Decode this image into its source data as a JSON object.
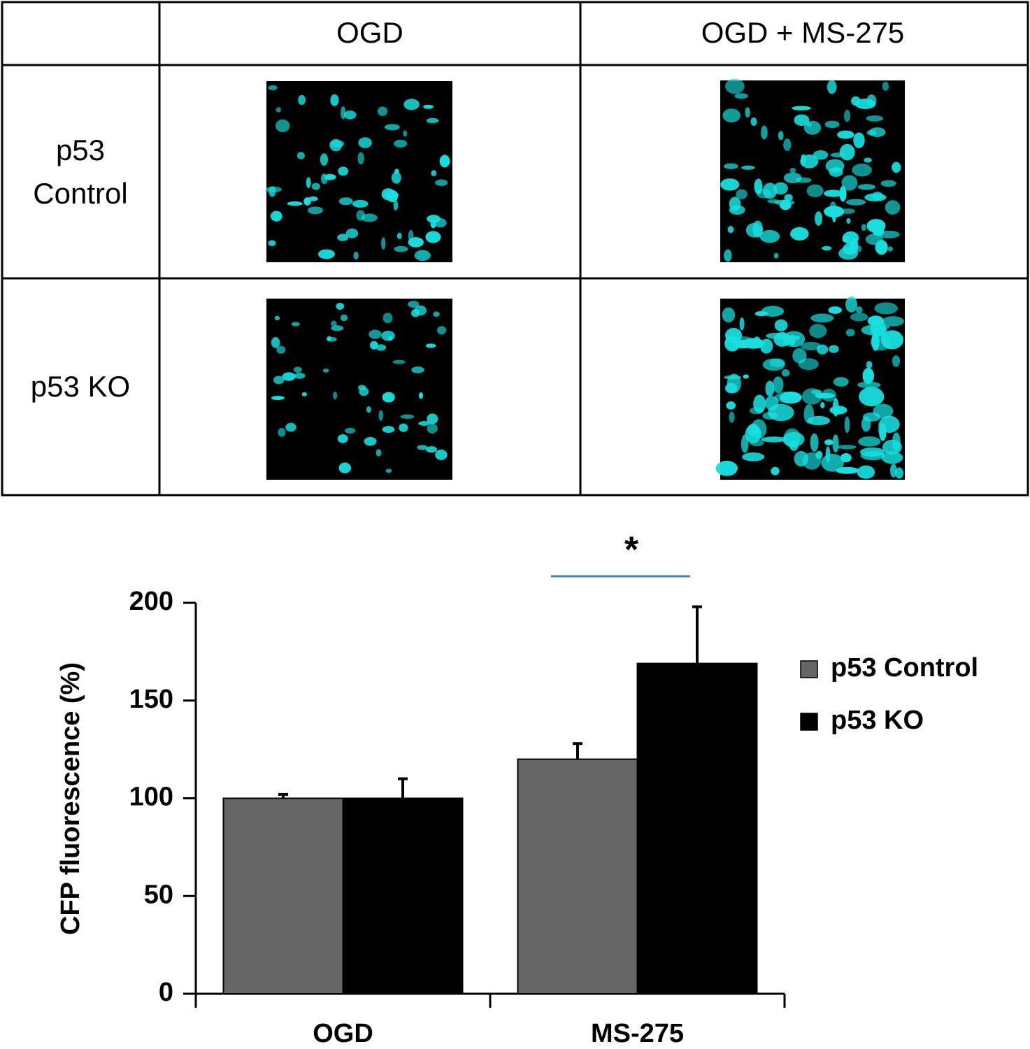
{
  "table": {
    "columns": [
      "OGD",
      "OGD + MS-275"
    ],
    "rows": [
      "p53 Control",
      "p53 KO"
    ]
  },
  "chart_data": {
    "type": "bar",
    "ylabel": "CFP fluorescence (%)",
    "categories": [
      "OGD",
      "MS-275"
    ],
    "series": [
      {
        "name": "p53 Control",
        "color": "#666666",
        "values": [
          100,
          120
        ],
        "errors": [
          2,
          8
        ]
      },
      {
        "name": "p53 KO",
        "color": "#000000",
        "values": [
          100,
          169
        ],
        "errors": [
          10,
          29
        ]
      }
    ],
    "ylim": [
      0,
      200
    ],
    "yticks": [
      0,
      50,
      100,
      150,
      200
    ],
    "annotation": "*",
    "legend": "right"
  }
}
